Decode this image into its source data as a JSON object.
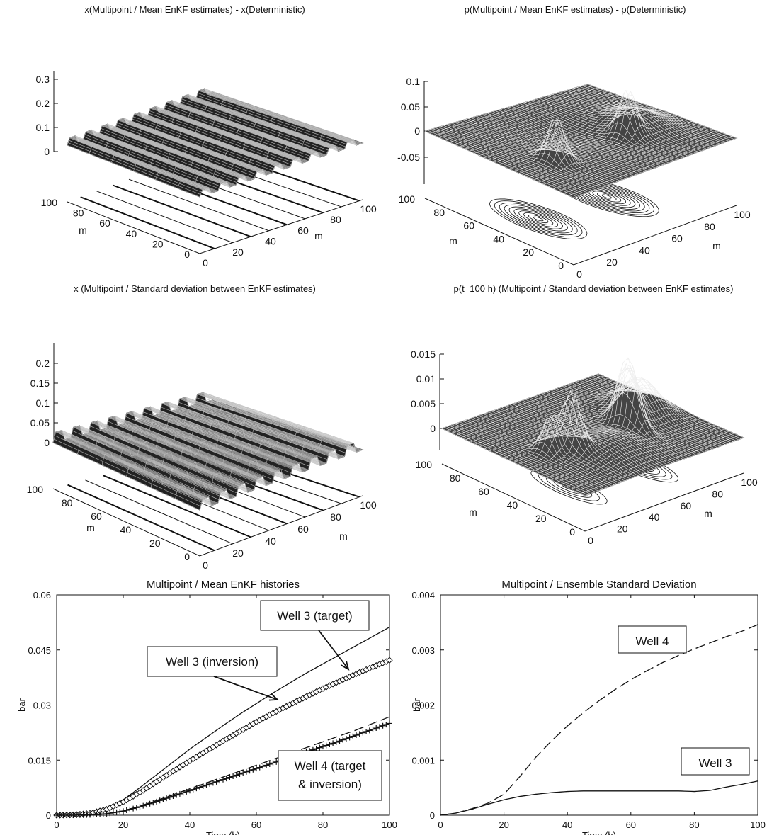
{
  "chart_data": [
    {
      "type": "surface",
      "title": "x(Multipoint / Mean EnKF estimates) - x(Deterministic)",
      "zticks": [
        "0",
        "0.1",
        "0.2",
        "0.3"
      ],
      "axis1_ticks": [
        "0",
        "20",
        "40",
        "60",
        "80",
        "100"
      ],
      "axis2_ticks": [
        "0",
        "20",
        "40",
        "60",
        "80",
        "100"
      ],
      "axis1_label": "m",
      "axis2_label": "m"
    },
    {
      "type": "surface",
      "title": "p(Multipoint / Mean EnKF estimates) - p(Deterministic)",
      "zticks": [
        "-0.05",
        "0",
        "0.05",
        "0.1"
      ],
      "axis1_ticks": [
        "0",
        "20",
        "40",
        "60",
        "80",
        "100"
      ],
      "axis2_ticks": [
        "0",
        "20",
        "40",
        "60",
        "80",
        "100"
      ],
      "axis1_label": "m",
      "axis2_label": "m"
    },
    {
      "type": "surface",
      "title": "x (Multipoint / Standard deviation between EnKF estimates)",
      "zticks": [
        "0",
        "0.05",
        "0.1",
        "0.15",
        "0.2"
      ],
      "axis1_ticks": [
        "0",
        "20",
        "40",
        "60",
        "80",
        "100"
      ],
      "axis2_ticks": [
        "0",
        "20",
        "40",
        "60",
        "80",
        "100"
      ],
      "axis1_label": "m",
      "axis2_label": "m"
    },
    {
      "type": "surface",
      "title": "p(t=100 h) (Multipoint / Standard deviation between EnKF estimates)",
      "zticks": [
        "0",
        "0.005",
        "0.01",
        "0.015"
      ],
      "axis1_ticks": [
        "0",
        "20",
        "40",
        "60",
        "80",
        "100"
      ],
      "axis2_ticks": [
        "0",
        "20",
        "40",
        "60",
        "80",
        "100"
      ],
      "axis1_label": "m",
      "axis2_label": "m"
    },
    {
      "type": "line",
      "title": "Multipoint / Mean EnKF histories",
      "xlabel": "Time (h)",
      "ylabel": "bar",
      "xlim": [
        0,
        100
      ],
      "ylim": [
        0,
        0.06
      ],
      "xticks": [
        "0",
        "20",
        "40",
        "60",
        "80",
        "100"
      ],
      "yticks": [
        "0",
        "0.015",
        "0.03",
        "0.045",
        "0.06"
      ],
      "x": [
        0,
        5,
        10,
        15,
        20,
        25,
        30,
        35,
        40,
        45,
        50,
        55,
        60,
        65,
        70,
        75,
        80,
        85,
        90,
        95,
        100
      ],
      "series": [
        {
          "name": "Well 3 (target)",
          "style": "solid",
          "values": [
            0,
            0.0002,
            0.0006,
            0.0018,
            0.0042,
            0.0075,
            0.011,
            0.0145,
            0.018,
            0.0212,
            0.0244,
            0.0275,
            0.0304,
            0.0333,
            0.036,
            0.0387,
            0.0412,
            0.0437,
            0.0462,
            0.0487,
            0.0512
          ]
        },
        {
          "name": "Well 3 (inversion)",
          "style": "diamond",
          "values": [
            0,
            0.0001,
            0.0005,
            0.0016,
            0.0036,
            0.0062,
            0.0091,
            0.012,
            0.0148,
            0.0175,
            0.0202,
            0.0228,
            0.0254,
            0.0278,
            0.0301,
            0.0323,
            0.0345,
            0.0365,
            0.0385,
            0.0404,
            0.0422
          ]
        },
        {
          "name": "Well 4 (target",
          "style": "dashed",
          "values": [
            0,
            0.0,
            0.0001,
            0.0004,
            0.0012,
            0.0025,
            0.004,
            0.0056,
            0.0072,
            0.0088,
            0.0104,
            0.012,
            0.0136,
            0.0152,
            0.0168,
            0.0184,
            0.02,
            0.0216,
            0.0232,
            0.025,
            0.0268
          ]
        },
        {
          "name": "& inversion)",
          "style": "plus",
          "values": [
            0,
            0.0,
            0.0001,
            0.0004,
            0.0011,
            0.0023,
            0.0037,
            0.0052,
            0.0067,
            0.0082,
            0.0097,
            0.0112,
            0.0127,
            0.0142,
            0.0157,
            0.0172,
            0.0187,
            0.0202,
            0.0218,
            0.0234,
            0.025
          ]
        }
      ]
    },
    {
      "type": "line",
      "title": "Multipoint / Ensemble Standard Deviation",
      "xlabel": "Time (h)",
      "ylabel": "bar",
      "xlim": [
        0,
        100
      ],
      "ylim": [
        0,
        0.004
      ],
      "xticks": [
        "0",
        "20",
        "40",
        "60",
        "80",
        "100"
      ],
      "yticks": [
        "0",
        "0.001",
        "0.002",
        "0.003",
        "0.004"
      ],
      "x": [
        0,
        5,
        10,
        15,
        20,
        25,
        30,
        35,
        40,
        45,
        50,
        55,
        60,
        65,
        70,
        75,
        80,
        85,
        90,
        95,
        100
      ],
      "series": [
        {
          "name": "Well 4",
          "style": "dashed",
          "values": [
            0,
            4e-05,
            0.00012,
            0.00022,
            0.00038,
            0.0007,
            0.00105,
            0.00135,
            0.00162,
            0.00186,
            0.00208,
            0.00228,
            0.00246,
            0.00262,
            0.00277,
            0.0029,
            0.00302,
            0.00313,
            0.00324,
            0.00334,
            0.00346
          ]
        },
        {
          "name": "Well 3",
          "style": "solid",
          "values": [
            0,
            4e-05,
            0.00011,
            0.0002,
            0.00028,
            0.00034,
            0.00038,
            0.00041,
            0.00043,
            0.00044,
            0.00044,
            0.00044,
            0.00044,
            0.00044,
            0.00044,
            0.00044,
            0.00043,
            0.00045,
            0.00051,
            0.00056,
            0.00062
          ]
        }
      ]
    }
  ]
}
